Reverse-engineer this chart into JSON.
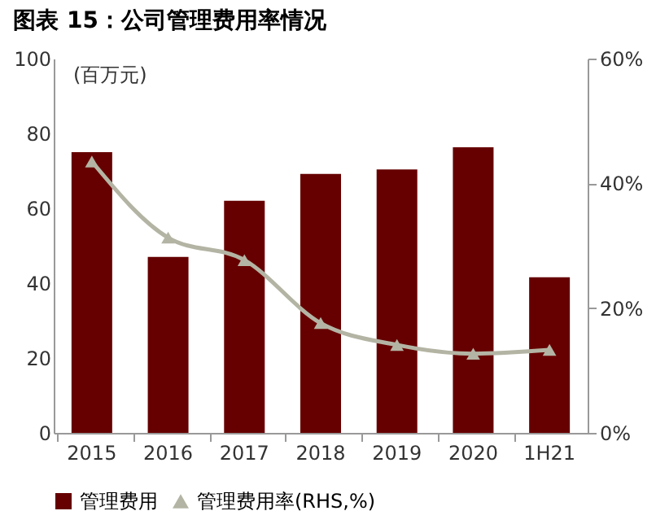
{
  "chart_data": {
    "type": "bar",
    "title": "图表 15：公司管理费用率情况",
    "ylabel": "(百万元)",
    "categories": [
      "2015",
      "2016",
      "2017",
      "2018",
      "2019",
      "2020",
      "1H21"
    ],
    "series": [
      {
        "name": "管理费用",
        "color": "#660000",
        "values": [
          75,
          47,
          62,
          69.2,
          70.4,
          76.3,
          41.6
        ]
      },
      {
        "name": "管理费用率(RHS,%)",
        "type": "line",
        "axis": "y2",
        "color": "#b4b4a4",
        "marker": "triangle",
        "values": [
          43.5,
          31.3,
          27.7,
          17.6,
          14.1,
          12.7,
          13.3
        ]
      }
    ],
    "ylim": [
      0,
      100
    ],
    "yticks": [
      0,
      20,
      40,
      60,
      80,
      100
    ],
    "y2lim": [
      0,
      60
    ],
    "y2ticks": [
      {
        "value": 0,
        "label": "0%"
      },
      {
        "value": 20,
        "label": "20%"
      },
      {
        "value": 40,
        "label": "40%"
      },
      {
        "value": 60,
        "label": "60%"
      }
    ],
    "legend": "bottom",
    "grid": false
  }
}
